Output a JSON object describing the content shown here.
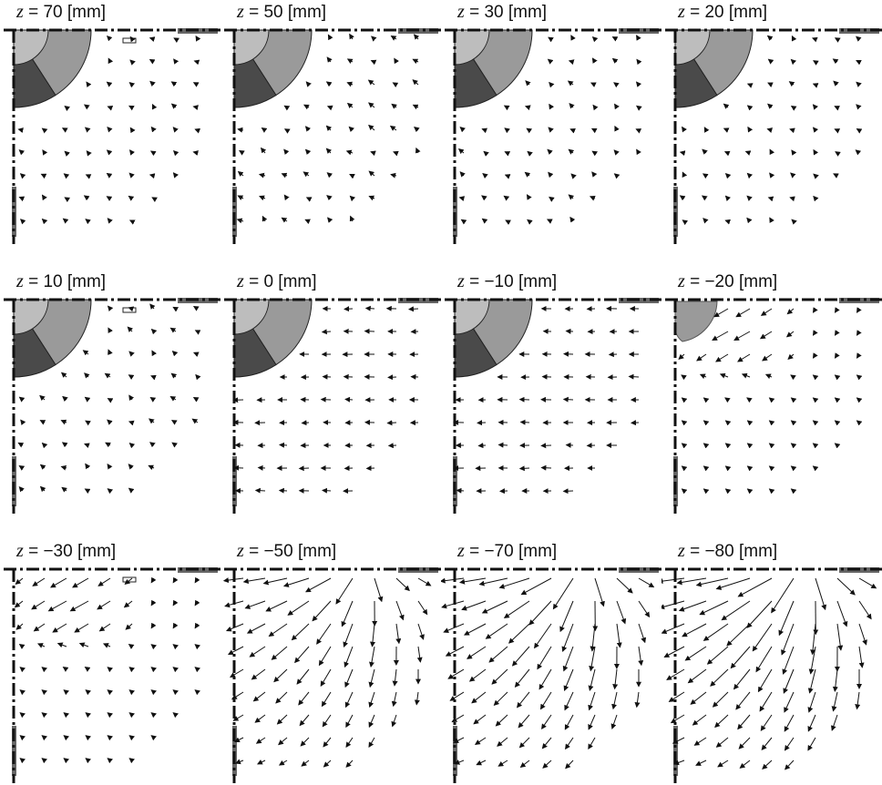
{
  "figure": {
    "panels": [
      {
        "var": "z",
        "text": " = 70 [mm]",
        "value": 70,
        "wheel": "full",
        "arrow_strength": 0.35,
        "pattern": "upper"
      },
      {
        "var": "z",
        "text": " = 50 [mm]",
        "value": 50,
        "wheel": "full",
        "arrow_strength": 0.5,
        "pattern": "upper"
      },
      {
        "var": "z",
        "text": " = 30 [mm]",
        "value": 30,
        "wheel": "full",
        "arrow_strength": 0.4,
        "pattern": "upper"
      },
      {
        "var": "z",
        "text": " = 20 [mm]",
        "value": 20,
        "wheel": "full",
        "arrow_strength": 0.35,
        "pattern": "upper"
      },
      {
        "var": "z",
        "text": " = 10 [mm]",
        "value": 10,
        "wheel": "full",
        "arrow_strength": 0.45,
        "pattern": "upper"
      },
      {
        "var": "z",
        "text": " = 0 [mm]",
        "value": 0,
        "wheel": "full",
        "arrow_strength": 0.55,
        "pattern": "mid"
      },
      {
        "var": "z",
        "text": " = −10 [mm]",
        "value": -10,
        "wheel": "full",
        "arrow_strength": 0.55,
        "pattern": "mid"
      },
      {
        "var": "z",
        "text": " = −20 [mm]",
        "value": -20,
        "wheel": "small",
        "arrow_strength": 0.7,
        "pattern": "jet"
      },
      {
        "var": "z",
        "text": " = −30 [mm]",
        "value": -30,
        "wheel": "none",
        "arrow_strength": 0.8,
        "pattern": "jet"
      },
      {
        "var": "z",
        "text": " = −50 [mm]",
        "value": -50,
        "wheel": "none",
        "arrow_strength": 1.0,
        "pattern": "fan"
      },
      {
        "var": "z",
        "text": " = −70 [mm]",
        "value": -70,
        "wheel": "none",
        "arrow_strength": 1.2,
        "pattern": "fan"
      },
      {
        "var": "z",
        "text": " = −80 [mm]",
        "value": -80,
        "wheel": "none",
        "arrow_strength": 1.35,
        "pattern": "fan"
      }
    ]
  },
  "colors": {
    "axis": "#111111",
    "wheel_light": "#9a9a9a",
    "wheel_dark": "#4a4a4a",
    "hub": "#bdbdbd",
    "wall": "#666666",
    "arrow": "#111111"
  }
}
